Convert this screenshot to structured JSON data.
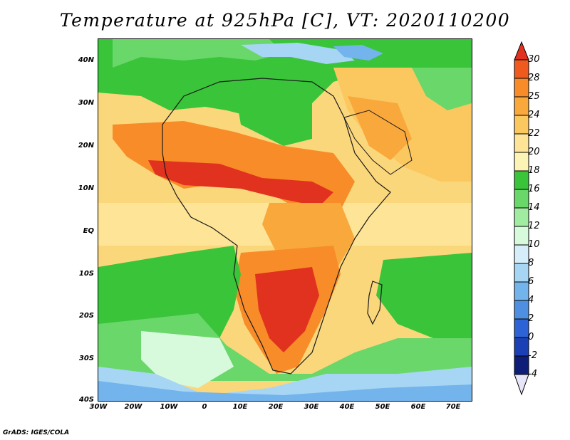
{
  "title": "Temperature at 925hPa [C], VT: 2020110200",
  "credit": "GrADS: IGES/COLA",
  "map": {
    "region": "Africa",
    "variable": "Temperature at 925hPa",
    "units": "C",
    "valid_time": "2020110200",
    "lon_range": [
      -30,
      75
    ],
    "lat_range": [
      -40,
      45
    ]
  },
  "lat_labels": [
    "40N",
    "30N",
    "20N",
    "10N",
    "EQ",
    "10S",
    "20S",
    "30S",
    "40S"
  ],
  "lon_labels": [
    "30W",
    "20W",
    "10W",
    "0",
    "10E",
    "20E",
    "30E",
    "40E",
    "50E",
    "60E",
    "70E"
  ],
  "colorbar": {
    "labels": [
      "30",
      "28",
      "25",
      "24",
      "22",
      "20",
      "18",
      "16",
      "14",
      "12",
      "10",
      "8",
      "6",
      "4",
      "2",
      "0",
      "-2",
      "-4"
    ],
    "colors": [
      "#e0321e",
      "#f05a1e",
      "#f88c28",
      "#f9a83c",
      "#fbc860",
      "#fde496",
      "#fcf4b4",
      "#39c43a",
      "#6ad76a",
      "#a0eca0",
      "#d8fadc",
      "#d6eef9",
      "#a6d6f4",
      "#74b4ec",
      "#4f8fe2",
      "#2d63d4",
      "#1b3fb4",
      "#0e1e78",
      "#e6e6f8"
    ]
  }
}
